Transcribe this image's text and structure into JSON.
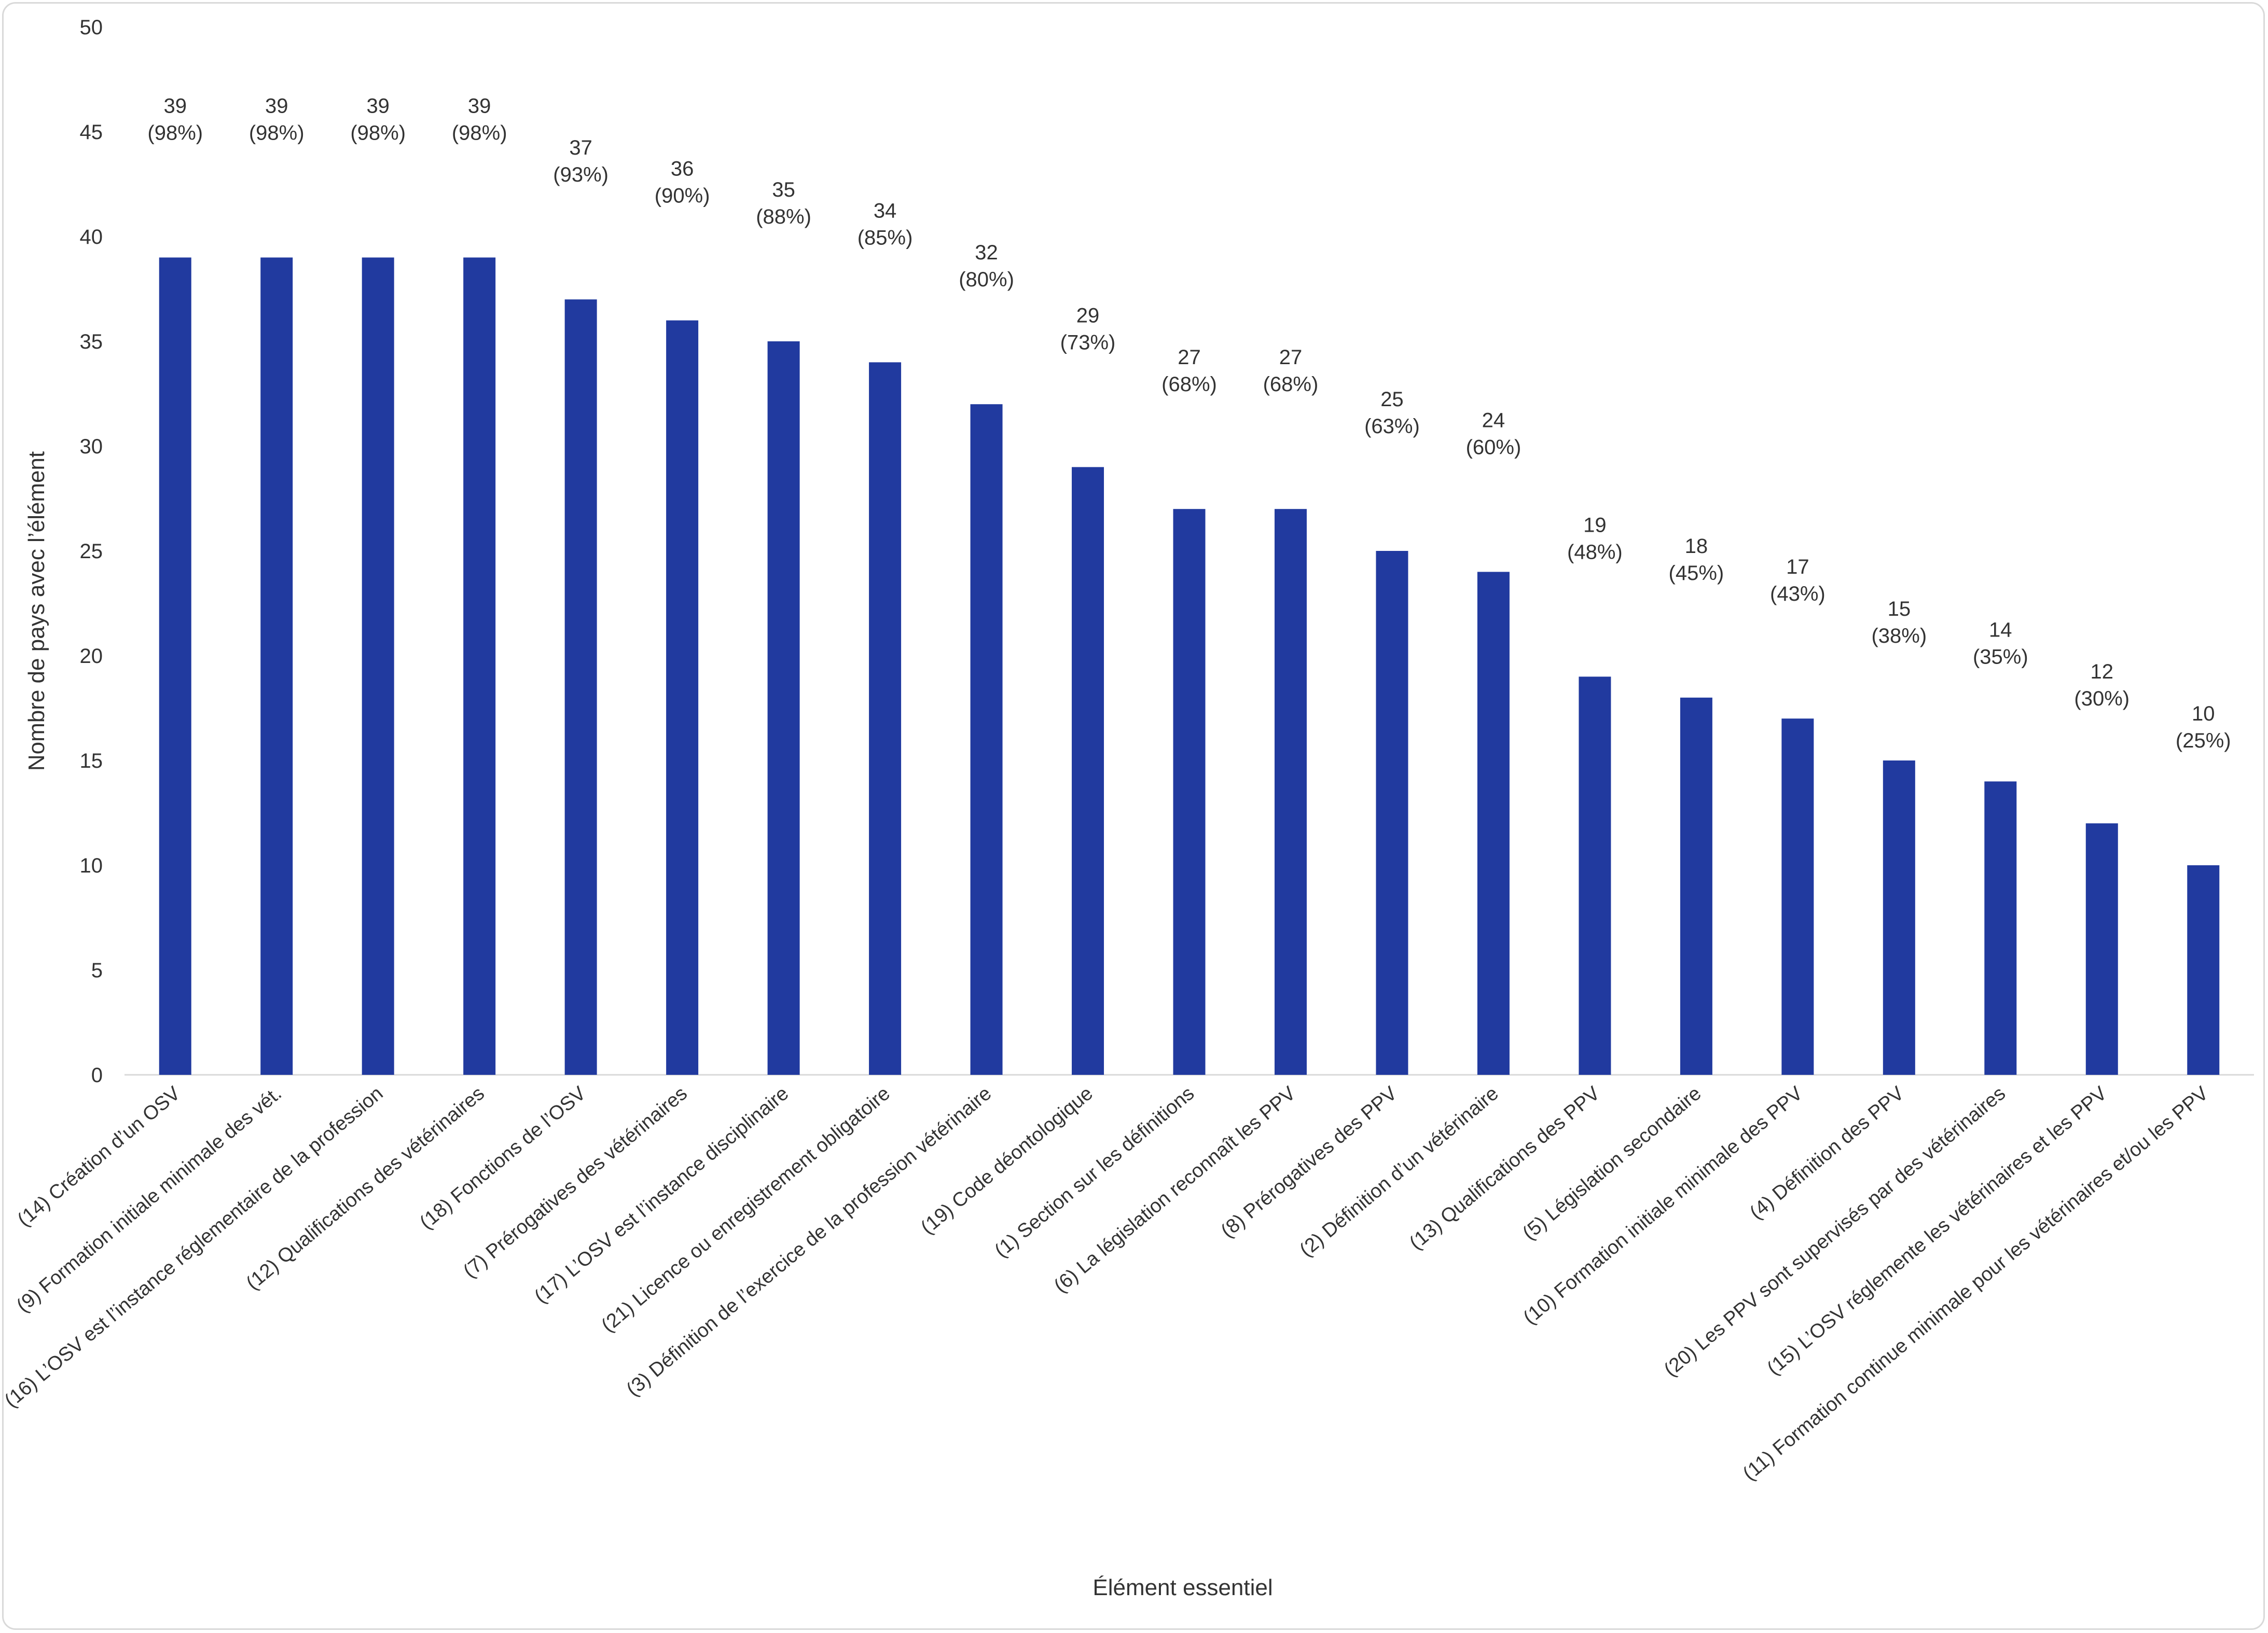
{
  "chart_data": {
    "type": "bar",
    "title": "",
    "xlabel": "Élément essentiel",
    "ylabel": "Nombre de pays avec l’élément",
    "ylim": [
      0,
      50
    ],
    "yticks": [
      0,
      5,
      10,
      15,
      20,
      25,
      30,
      35,
      40,
      45,
      50
    ],
    "grid": false,
    "legend": "none",
    "bar_color": "#213A9F",
    "categories": [
      "(14) Création d’un OSV",
      "(9) Formation initiale minimale des vét.",
      "(16) L’OSV est l’instance réglementaire de la profession",
      "(12) Qualifications des vétérinaires",
      "(18) Fonctions de l’OSV",
      "(7) Prérogatives des vétérinaires",
      "(17) L’OSV est l’instance disciplinaire",
      "(21) Licence ou enregistrement obligatoire",
      "(3) Définition de l’exercice de la profession vétérinaire",
      "(19) Code déontologique",
      "(1) Section sur les définitions",
      "(6) La législation reconnaît les PPV",
      "(8) Prérogatives des PPV",
      "(2) Définition d’un vétérinaire",
      "(13) Qualifications des PPV",
      "(5) Législation secondaire",
      "(10) Formation initiale minimale des PPV",
      "(4) Définition des PPV",
      "(20) Les PPV sont supervisés par des vétérinaires",
      "(15) L’OSV réglemente les vétérinaires et les PPV",
      "(11) Formation continue minimale pour les vétérinaires et/ou les PPV"
    ],
    "values": [
      39,
      39,
      39,
      39,
      37,
      36,
      35,
      34,
      32,
      29,
      27,
      27,
      25,
      24,
      19,
      18,
      17,
      15,
      14,
      12,
      10
    ],
    "data_labels": [
      "(98%)",
      "(98%)",
      "(98%)",
      "(98%)",
      "(93%)",
      "(90%)",
      "(88%)",
      "(85%)",
      "(80%)",
      "(73%)",
      "(68%)",
      "(68%)",
      "(63%)",
      "(60%)",
      "(48%)",
      "(45%)",
      "(43%)",
      "(38%)",
      "(35%)",
      "(30%)",
      "(25%)"
    ]
  }
}
